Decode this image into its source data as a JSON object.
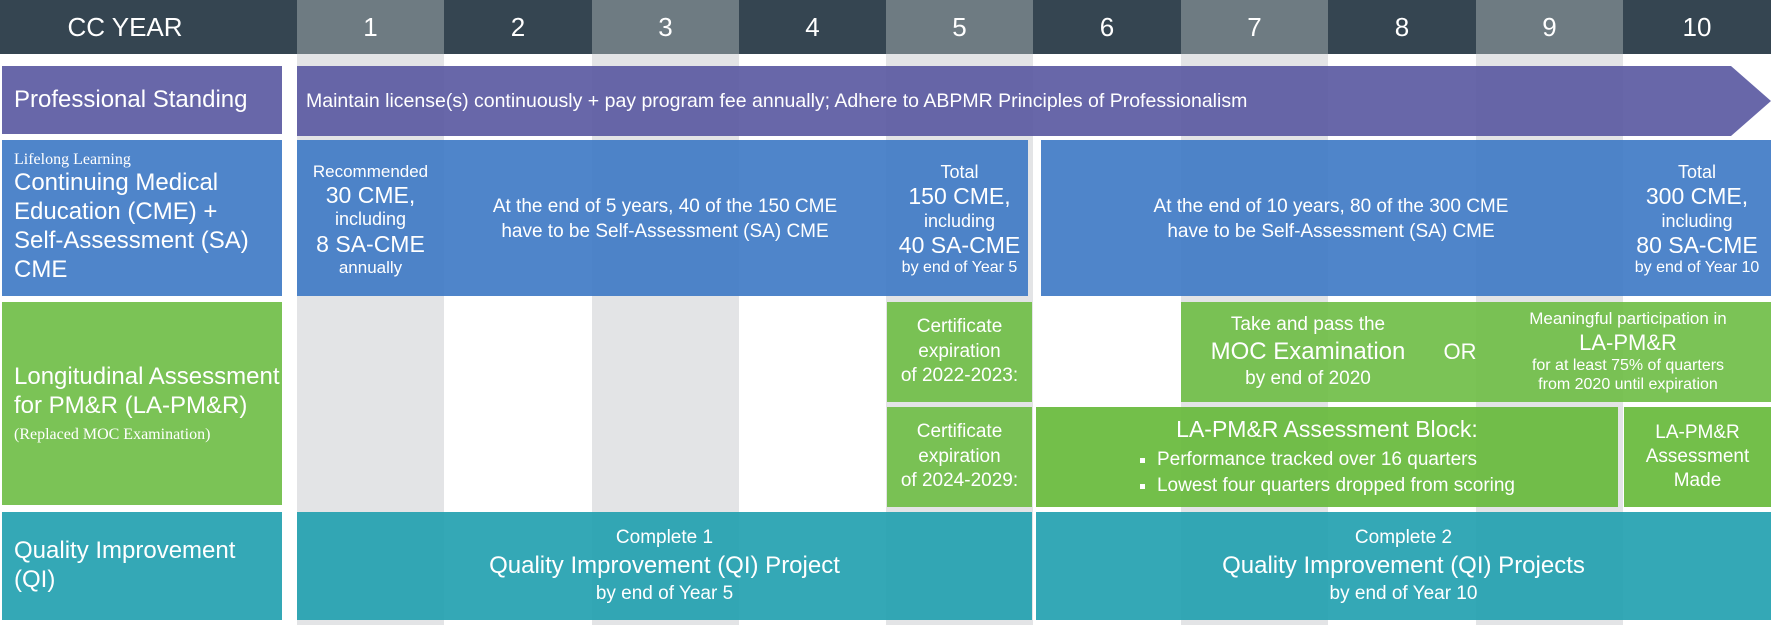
{
  "header": {
    "cc_year_label": "CC YEAR",
    "years": [
      "1",
      "2",
      "3",
      "4",
      "5",
      "6",
      "7",
      "8",
      "9",
      "10"
    ]
  },
  "rows": {
    "professional_standing": {
      "label": "Professional Standing",
      "bar_text": "Maintain license(s) continuously + pay program fee annually; Adhere to ABPMR Principles of Professionalism"
    },
    "lifelong_learning": {
      "label_small": "Lifelong Learning",
      "label": "Continuing Medical Education (CME) + Self-Assessment (SA) CME",
      "recommended": {
        "line1": "Recommended",
        "line2": "30 CME,",
        "line3": "including",
        "line4": "8 SA-CME",
        "line5": "annually"
      },
      "five_year_note": {
        "line1": "At the end of 5 years, 40 of the 150 CME",
        "line2": "have to be Self-Assessment (SA) CME"
      },
      "total5": {
        "line1": "Total",
        "line2": "150 CME,",
        "line3": "including",
        "line4": "40 SA-CME",
        "line5": "by end of Year 5"
      },
      "ten_year_note": {
        "line1": "At the end of 10 years, 80 of the 300 CME",
        "line2": "have to be Self-Assessment (SA) CME"
      },
      "total10": {
        "line1": "Total",
        "line2": "300 CME,",
        "line3": "including",
        "line4": "80 SA-CME",
        "line5": "by end of Year 10"
      }
    },
    "longitudinal": {
      "label": "Longitudinal Assessment for PM&R (LA-PM&R)",
      "label_note": "(Replaced MOC Examination)",
      "cert_a": {
        "line1": "Certificate",
        "line2": "expiration",
        "line3": "of 2022-2023:"
      },
      "cert_b": {
        "line1": "Certificate",
        "line2": "expiration",
        "line3": "of 2024-2029:"
      },
      "moc": {
        "line1": "Take and pass the",
        "line2": "MOC Examination",
        "line3": "by end of 2020"
      },
      "or_text": "OR",
      "meaningful": {
        "line1": "Meaningful participation in",
        "line2": "LA-PM&R",
        "line3": "for at least 75% of quarters",
        "line4": "from 2020 until expiration"
      },
      "block": {
        "title": "LA-PM&R Assessment Block:",
        "bullets": [
          "Performance tracked over 16 quarters",
          "Lowest four quarters dropped from scoring"
        ]
      },
      "made": {
        "line1": "LA-PM&R",
        "line2": "Assessment",
        "line3": "Made"
      }
    },
    "qi": {
      "label": "Quality Improvement (QI)",
      "first": {
        "line1": "Complete 1",
        "line2": "Quality Improvement (QI) Project",
        "line3": "by end of Year 5"
      },
      "second": {
        "line1": "Complete 2",
        "line2": "Quality Improvement (QI) Projects",
        "line3": "by end of Year 10"
      }
    }
  },
  "colors": {
    "header": "#354551",
    "stripe": "#e3e4e6",
    "professional": "#5856a0",
    "cme": "#3c78c4",
    "longitudinal": "#70be48",
    "qi": "#1e9eae"
  }
}
